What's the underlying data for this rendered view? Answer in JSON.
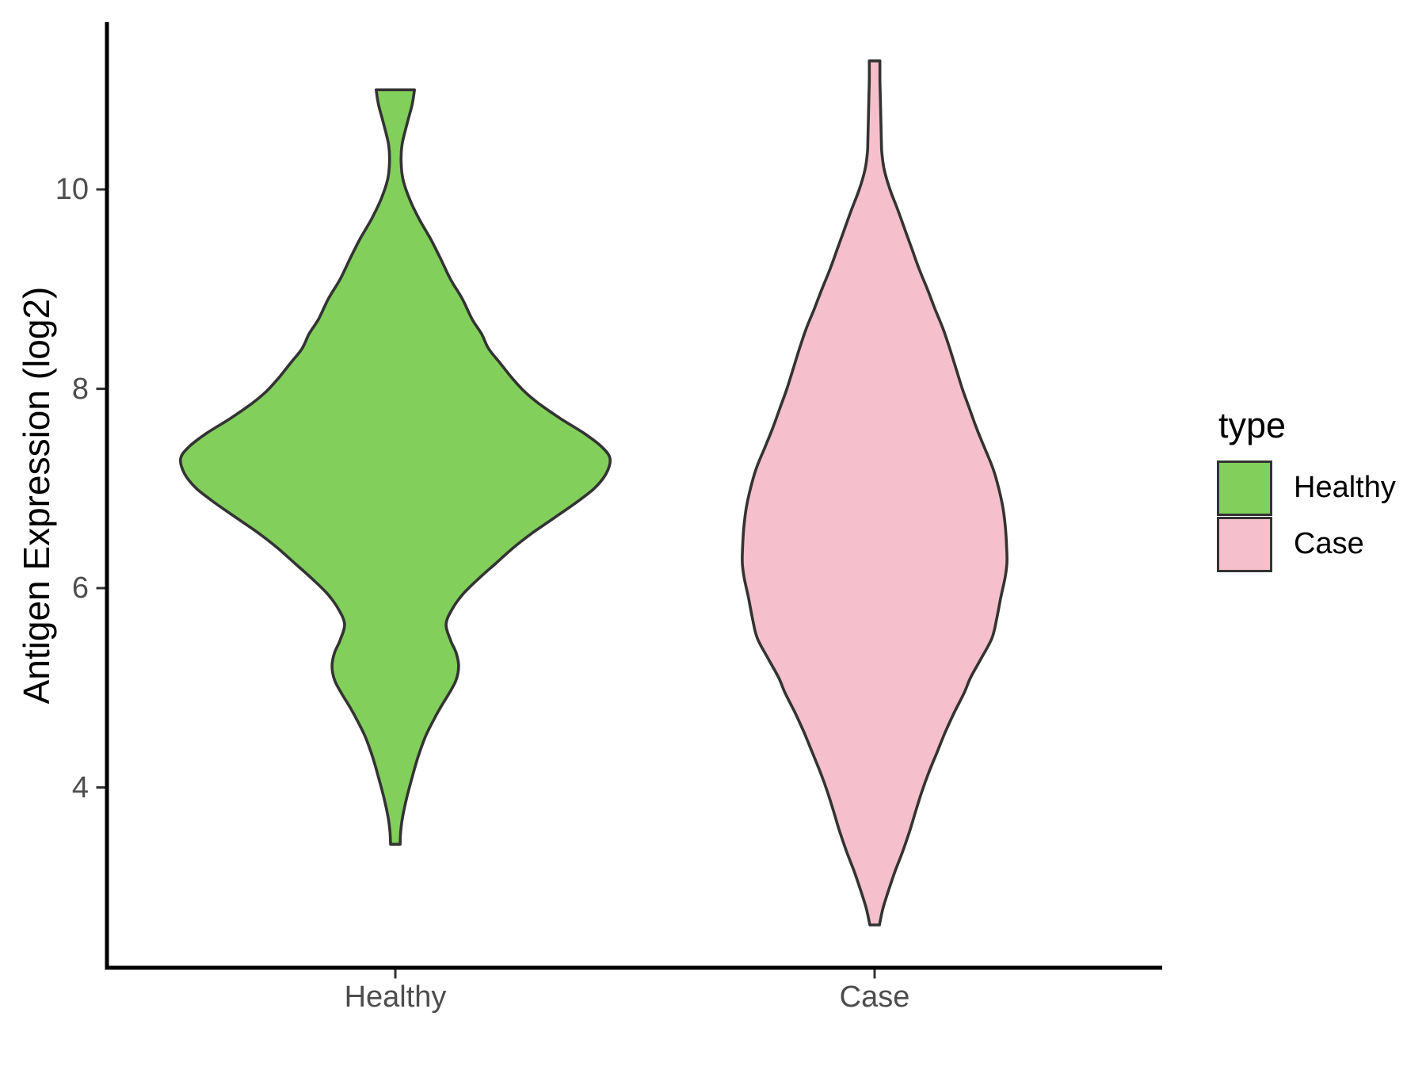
{
  "figure": {
    "background": "#FFFFFF"
  },
  "colors": {
    "healthy_fill": "#82CF5C",
    "case_fill": "#F5BFCB",
    "violin_outline": "#333333",
    "axis_line": "#000000",
    "tick_mark": "#333333",
    "tick_label": "#4D4D4D",
    "text": "#000000"
  },
  "legend": {
    "title": "type",
    "entries": [
      {
        "label": "Healthy",
        "color": "#82CF5C"
      },
      {
        "label": "Case",
        "color": "#F5BFCB"
      }
    ]
  },
  "chart_data": {
    "type": "violin",
    "title": "",
    "xlabel": "",
    "ylabel": "Antigen Expression (log2)",
    "categories": [
      "Healthy",
      "Case"
    ],
    "yticks": [
      4,
      6,
      8,
      10
    ],
    "ylim": [
      2.2,
      11.7
    ],
    "grid": false,
    "legend_position": "right",
    "series": [
      {
        "name": "Healthy",
        "color": "#82CF5C",
        "min_value": 3.43,
        "max_value": 11.0,
        "widest_at_value": 7.3,
        "profile": [
          [
            11.0,
            0.04
          ],
          [
            10.85,
            0.035
          ],
          [
            10.65,
            0.024
          ],
          [
            10.45,
            0.014
          ],
          [
            10.28,
            0.012
          ],
          [
            10.1,
            0.016
          ],
          [
            9.9,
            0.03
          ],
          [
            9.7,
            0.05
          ],
          [
            9.5,
            0.074
          ],
          [
            9.3,
            0.095
          ],
          [
            9.1,
            0.115
          ],
          [
            8.9,
            0.14
          ],
          [
            8.7,
            0.16
          ],
          [
            8.55,
            0.18
          ],
          [
            8.4,
            0.195
          ],
          [
            8.25,
            0.22
          ],
          [
            8.1,
            0.245
          ],
          [
            7.97,
            0.27
          ],
          [
            7.85,
            0.3
          ],
          [
            7.7,
            0.345
          ],
          [
            7.55,
            0.395
          ],
          [
            7.42,
            0.43
          ],
          [
            7.3,
            0.448
          ],
          [
            7.15,
            0.44
          ],
          [
            7.0,
            0.415
          ],
          [
            6.85,
            0.375
          ],
          [
            6.7,
            0.33
          ],
          [
            6.55,
            0.285
          ],
          [
            6.4,
            0.245
          ],
          [
            6.25,
            0.21
          ],
          [
            6.1,
            0.175
          ],
          [
            5.95,
            0.143
          ],
          [
            5.8,
            0.12
          ],
          [
            5.64,
            0.106
          ],
          [
            5.48,
            0.115
          ],
          [
            5.35,
            0.127
          ],
          [
            5.22,
            0.132
          ],
          [
            5.08,
            0.127
          ],
          [
            4.95,
            0.113
          ],
          [
            4.8,
            0.094
          ],
          [
            4.65,
            0.077
          ],
          [
            4.5,
            0.062
          ],
          [
            4.3,
            0.047
          ],
          [
            4.1,
            0.035
          ],
          [
            3.9,
            0.024
          ],
          [
            3.7,
            0.015
          ],
          [
            3.55,
            0.011
          ],
          [
            3.43,
            0.01
          ]
        ]
      },
      {
        "name": "Case",
        "color": "#F5BFCB",
        "min_value": 2.62,
        "max_value": 11.29,
        "widest_at_value": 6.25,
        "profile": [
          [
            11.29,
            0.011
          ],
          [
            11.1,
            0.011
          ],
          [
            10.9,
            0.012
          ],
          [
            10.7,
            0.013
          ],
          [
            10.5,
            0.014
          ],
          [
            10.37,
            0.015
          ],
          [
            10.2,
            0.02
          ],
          [
            10.0,
            0.032
          ],
          [
            9.8,
            0.048
          ],
          [
            9.6,
            0.063
          ],
          [
            9.4,
            0.078
          ],
          [
            9.2,
            0.093
          ],
          [
            9.0,
            0.11
          ],
          [
            8.8,
            0.126
          ],
          [
            8.6,
            0.143
          ],
          [
            8.4,
            0.157
          ],
          [
            8.2,
            0.17
          ],
          [
            8.0,
            0.183
          ],
          [
            7.8,
            0.198
          ],
          [
            7.6,
            0.213
          ],
          [
            7.4,
            0.23
          ],
          [
            7.2,
            0.247
          ],
          [
            7.0,
            0.259
          ],
          [
            6.8,
            0.268
          ],
          [
            6.6,
            0.273
          ],
          [
            6.4,
            0.2755
          ],
          [
            6.25,
            0.276
          ],
          [
            6.1,
            0.272
          ],
          [
            5.9,
            0.263
          ],
          [
            5.7,
            0.255
          ],
          [
            5.5,
            0.245
          ],
          [
            5.3,
            0.223
          ],
          [
            5.1,
            0.2
          ],
          [
            4.95,
            0.187
          ],
          [
            4.75,
            0.166
          ],
          [
            4.55,
            0.147
          ],
          [
            4.35,
            0.13
          ],
          [
            4.15,
            0.113
          ],
          [
            3.95,
            0.098
          ],
          [
            3.75,
            0.085
          ],
          [
            3.56,
            0.073
          ],
          [
            3.35,
            0.058
          ],
          [
            3.15,
            0.042
          ],
          [
            2.95,
            0.028
          ],
          [
            2.78,
            0.017
          ],
          [
            2.62,
            0.01
          ]
        ]
      }
    ]
  }
}
